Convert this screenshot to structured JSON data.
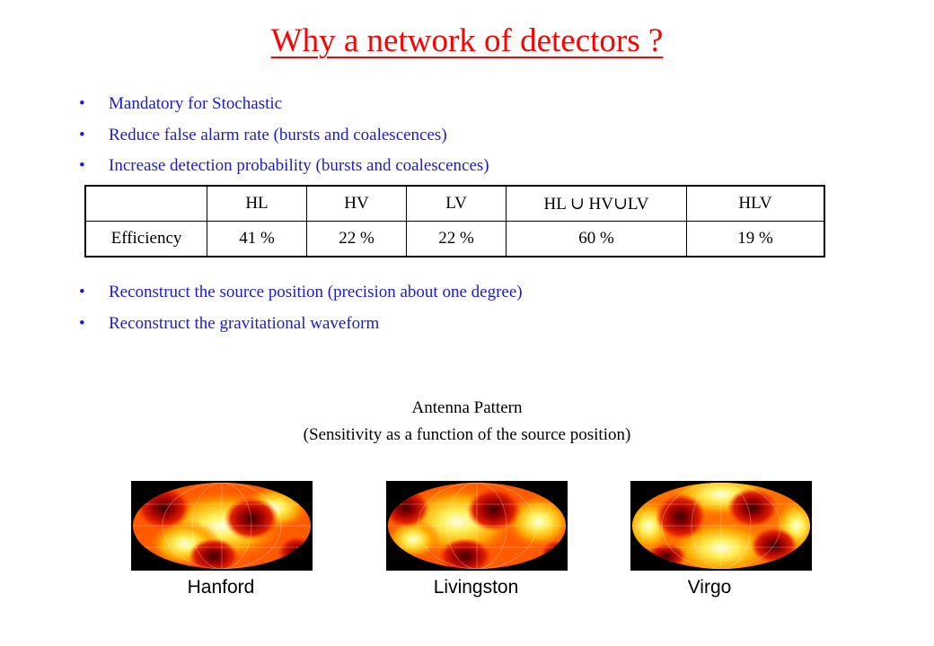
{
  "title": "Why a network of detectors ?",
  "bullets_top": [
    "Mandatory for Stochastic",
    "Reduce false alarm rate (bursts and coalescences)",
    "Increase detection probability (bursts and coalescences)"
  ],
  "table": {
    "header": [
      "",
      "HL",
      "HV",
      "LV",
      "HL ∪ HV∪LV",
      "HLV"
    ],
    "row": [
      "Efficiency",
      "41 %",
      "22 %",
      "22 %",
      "60 %",
      "19 %"
    ]
  },
  "bullets_bottom": [
    "Reconstruct the source position (precision about one degree)",
    "Reconstruct the gravitational waveform"
  ],
  "antenna": {
    "line1": "Antenna Pattern",
    "line2": "(Sensitivity as a function of the source position)"
  },
  "maps": [
    {
      "label": "Hanford"
    },
    {
      "label": "Livingston"
    },
    {
      "label": "Virgo"
    }
  ],
  "colors": {
    "title": "#ff0000",
    "bullet_text": "#1a1adb",
    "heatmap_low": "#8b0000",
    "heatmap_high": "#ffffe0"
  }
}
